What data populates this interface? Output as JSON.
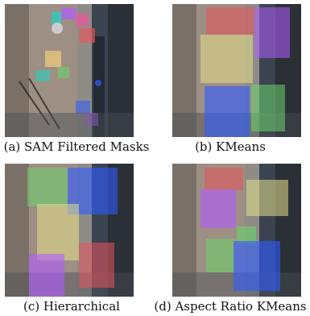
{
  "captions": {
    "a": "(a) SAM Filtered Masks",
    "b": "(b) KMeans",
    "c": "(c) Hierarchical",
    "d": "(d) Aspect Ratio KMeans"
  },
  "colors": {
    "red": "#e8545c",
    "green": "#6bd36b",
    "blue": "#2f5bff",
    "yellow": "#e4e08a",
    "purple": "#b05cff"
  }
}
